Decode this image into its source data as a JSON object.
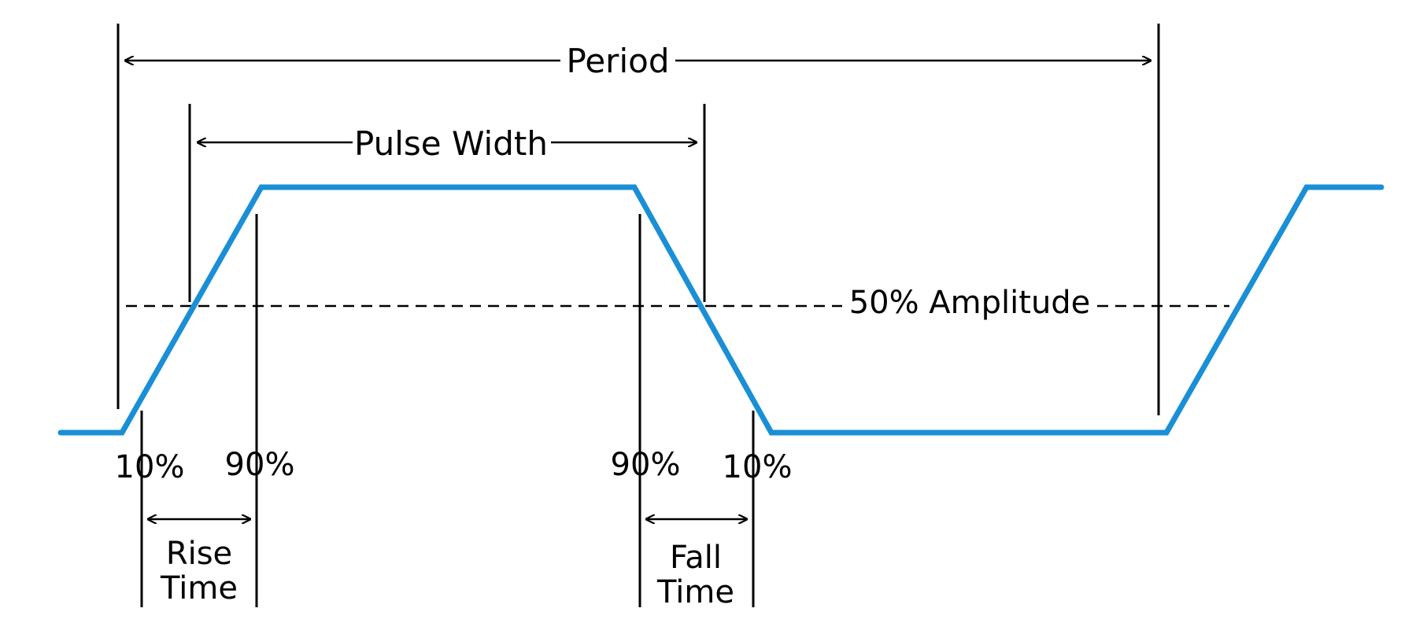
{
  "labels": {
    "period": "Period",
    "pulse_width": "Pulse Width",
    "amplitude_50": "50% Amplitude",
    "rise_10": "10%",
    "rise_90": "90%",
    "fall_90": "90%",
    "fall_10": "10%",
    "rise_time_line1": "Rise",
    "rise_time_line2": "Time",
    "fall_time_line1": "Fall",
    "fall_time_line2": "Time"
  },
  "colors": {
    "waveform": "#1a8fd6",
    "annotation": "#000000",
    "background": "#ffffff"
  }
}
